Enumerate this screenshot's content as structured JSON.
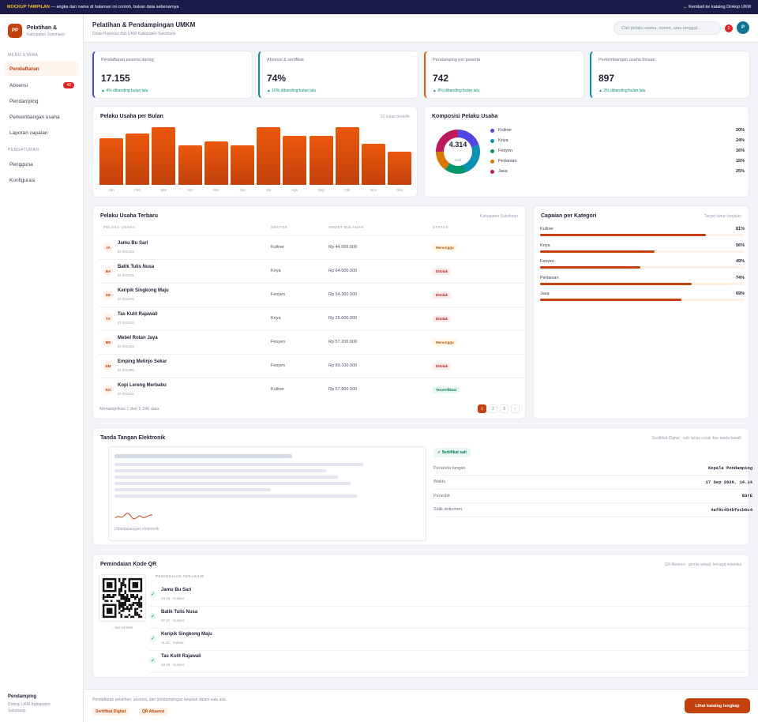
{
  "banner": {
    "tag": "MOCKUP TAMPILAN",
    "text": " — angka dan nama di halaman ini contoh, bukan data sebenarnya",
    "back": "← Kembali ke katalog Dinkop UKM"
  },
  "brand": {
    "logo": "PP",
    "title": "Pelatihan &",
    "subtitle": "Kabupaten Sukoharjo"
  },
  "nav": {
    "section_main": "MENU UTAMA",
    "section_settings": "PENGATURAN",
    "items": [
      {
        "label": "Pendaftaran"
      },
      {
        "label": "Absensi",
        "badge": "42"
      },
      {
        "label": "Pendamping"
      },
      {
        "label": "Perkembangan usaha"
      },
      {
        "label": "Laporan capaian"
      }
    ],
    "settings": [
      {
        "label": "Pengguna"
      },
      {
        "label": "Konfigurasi"
      }
    ]
  },
  "sidefoot": {
    "role": "Pendamping",
    "org": "Dinkop UKM Kabupaten",
    "region": "Sukoharjo"
  },
  "header": {
    "title": "Pelatihan & Pendampingan UMKM",
    "subtitle": "Dinas Koperasi dan UKM Kabupaten Sukoharjo",
    "search_placeholder": "Cari pelaku usaha, nomor, atau tanggal...",
    "notif_count": "2",
    "avatar": "P"
  },
  "kpis": [
    {
      "label": "Pendaftaran peserta daring",
      "value": "17.155",
      "delta": "▲ 4% dibanding bulan lalu",
      "accent": "#4f46e5"
    },
    {
      "label": "Absensi & sertifikat",
      "value": "74%",
      "delta": "▲ 10% dibanding bulan lalu",
      "accent": "#0d9488"
    },
    {
      "label": "Pendamping per peserta",
      "value": "742",
      "delta": "▲ 8% dibanding bulan lalu",
      "accent": "#ea580c"
    },
    {
      "label": "Perkembangan usaha binaan",
      "value": "897",
      "delta": "▲ 3% dibanding bulan lalu",
      "accent": "#0891b2"
    }
  ],
  "monthly": {
    "title": "Pelaku Usaha per Bulan",
    "meta": "12 bulan terakhir"
  },
  "chart_data": {
    "type": "bar",
    "categories": [
      "Jan",
      "Feb",
      "Mar",
      "Apr",
      "Mei",
      "Jun",
      "Jul",
      "Agu",
      "Sep",
      "Okt",
      "Nov",
      "Des"
    ],
    "values": [
      79,
      87,
      97,
      67,
      73,
      67,
      97,
      83,
      83,
      97,
      69,
      56
    ],
    "title": "Pelaku Usaha per Bulan",
    "grid": false
  },
  "composition": {
    "title": "Komposisi Pelaku Usaha",
    "total": "4.314",
    "total_label": "total",
    "items": [
      {
        "label": "Kuliner",
        "pct": "20%",
        "value": 20,
        "color": "#4f46e5"
      },
      {
        "label": "Kriya",
        "pct": "24%",
        "value": 24,
        "color": "#0891b2"
      },
      {
        "label": "Fesyen",
        "pct": "16%",
        "value": 16,
        "color": "#059669"
      },
      {
        "label": "Pertanian",
        "pct": "15%",
        "value": 15,
        "color": "#d97706"
      },
      {
        "label": "Jasa",
        "pct": "25%",
        "value": 25,
        "color": "#be185d"
      }
    ]
  },
  "table": {
    "title": "Pelaku Usaha Terbaru",
    "meta": "Kabupaten Sukoharjo",
    "headers": [
      "PELAKU USAHA",
      "SEKTOR",
      "OMZET BULANAN",
      "STATUS"
    ],
    "rows": [
      {
        "ini": "JA",
        "name": "Jamu Bu Sari",
        "id": "ID 001204",
        "sector": "Kuliner",
        "omzet": "Rp 44.000.000",
        "status": "Menunggu",
        "kind": "wait"
      },
      {
        "ini": "BA",
        "name": "Batik Tulis Nusa",
        "id": "ID 001241",
        "sector": "Kriya",
        "omzet": "Rp 64.500.000",
        "status": "Ditolak",
        "kind": "rej"
      },
      {
        "ini": "KE",
        "name": "Keripik Singkong Maju",
        "id": "ID 001278",
        "sector": "Fesyen",
        "omzet": "Rp 54.300.000",
        "status": "Ditolak",
        "kind": "rej"
      },
      {
        "ini": "TA",
        "name": "Tas Kulit Rajawali",
        "id": "ID 001315",
        "sector": "Kriya",
        "omzet": "Rp 25.600.000",
        "status": "Ditolak",
        "kind": "rej"
      },
      {
        "ini": "ME",
        "name": "Mebel Rotan Jaya",
        "id": "ID 001352",
        "sector": "Fesyen",
        "omzet": "Rp 57.200.000",
        "status": "Menunggu",
        "kind": "wait"
      },
      {
        "ini": "EM",
        "name": "Emping Melinjo Sekar",
        "id": "ID 001389",
        "sector": "Fesyen",
        "omzet": "Rp 89.100.000",
        "status": "Ditolak",
        "kind": "rej"
      },
      {
        "ini": "KO",
        "name": "Kopi Lereng Merbabu",
        "id": "ID 001426",
        "sector": "Kuliner",
        "omzet": "Rp 57.800.000",
        "status": "Terverifikasi",
        "kind": "ok"
      }
    ],
    "footer": "Menampilkan 7 dari 5.246 data",
    "pages": [
      "1",
      "2",
      "3",
      "›"
    ]
  },
  "achievement": {
    "title": "Capaian per Kategori",
    "meta": "Target tahun berjalan",
    "items": [
      {
        "label": "Kuliner",
        "pct": "81%",
        "value": 81
      },
      {
        "label": "Kriya",
        "pct": "56%",
        "value": 56
      },
      {
        "label": "Fesyen",
        "pct": "49%",
        "value": 49
      },
      {
        "label": "Pertanian",
        "pct": "74%",
        "value": 74
      },
      {
        "label": "Jasa",
        "pct": "69%",
        "value": 69
      }
    ]
  },
  "signature": {
    "title": "Tanda Tangan Elektronik",
    "meta": "Sertifikat Digital · sah tanpa cetak dan tanda basah",
    "signed_label": "Ditandatangani elektronik",
    "badge": "✓ Sertifikat sah",
    "fields": [
      {
        "k": "Penanda tangan",
        "v": "Kepala Pendamping"
      },
      {
        "k": "Waktu",
        "v": "17 Sep 2026, 14.14"
      },
      {
        "k": "Penerbit",
        "v": "BSrE"
      },
      {
        "k": "Sidik dokumen",
        "v": "4af8c454bfecb0c4"
      }
    ]
  },
  "qr": {
    "title": "Pemindaian Kode QR",
    "meta": "QR Absensi · pindai sekali, tercatat seketika",
    "code": "…BS-243084",
    "recent_label": "PEMINDAIAN TERAKHIR",
    "scans": [
      {
        "name": "Jamu Bu Sari",
        "meta": "13.19 · Kuliner"
      },
      {
        "name": "Batik Tulis Nusa",
        "meta": "07.27 · Kuliner"
      },
      {
        "name": "Keripik Singkong Maju",
        "meta": "11.12 · Kuliner"
      },
      {
        "name": "Tas Kulit Rajawali",
        "meta": "13.38 · Kuliner"
      }
    ]
  },
  "footer": {
    "text": "Pendaftaran pelatihan, absensi, dan pendampingan lanjutan dalam satu alur.",
    "tags": [
      "Sertifikat Digital",
      "QR Absensi"
    ],
    "cta": "Lihat katalog lengkap"
  }
}
